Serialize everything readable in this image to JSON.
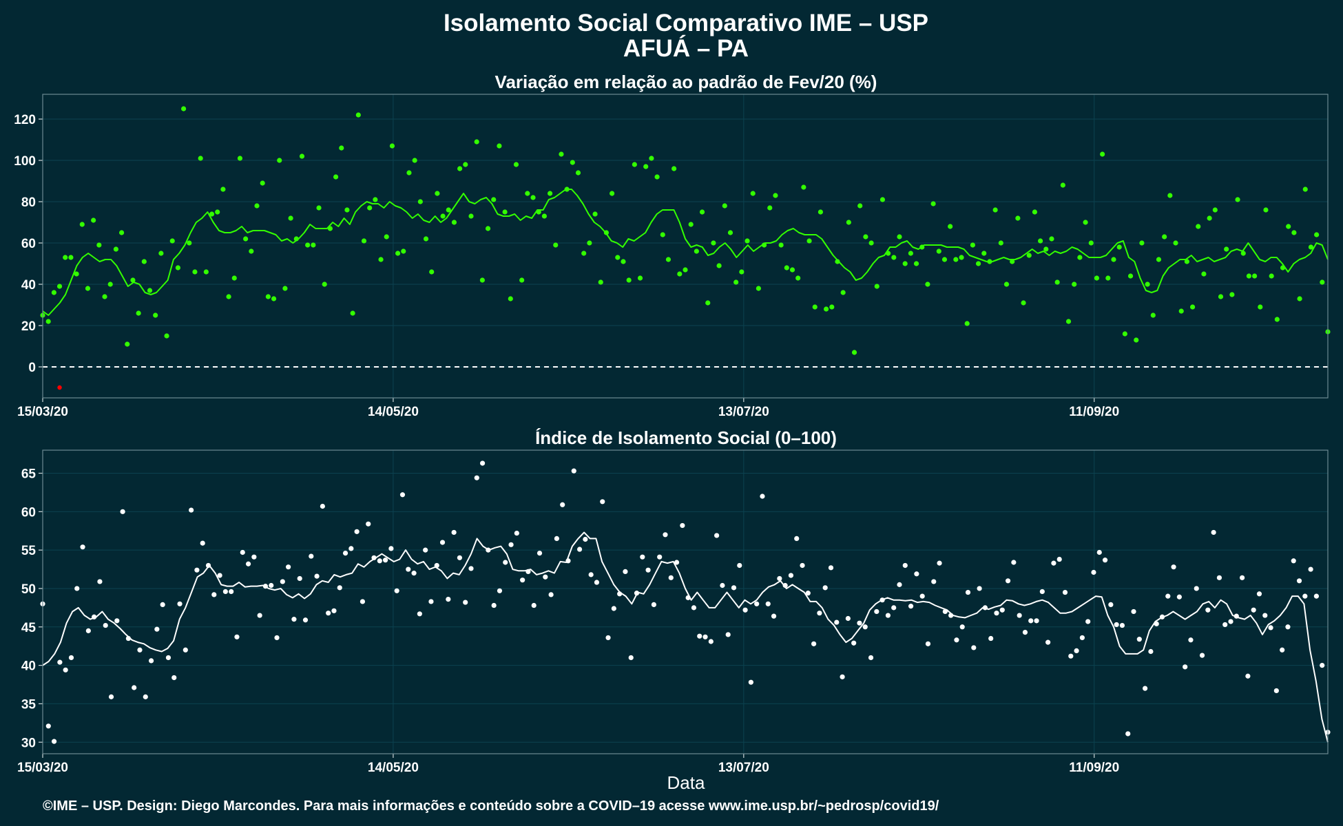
{
  "title": "Isolamento Social Comparativo IME – USP",
  "subtitle": "AFUÁ – PA",
  "xlabel": "Data",
  "footer": "©IME – USP. Design: Diego Marcondes. Para mais informações e conteúdo sobre a COVID–19 acesse www.ime.usp.br/~pedrosp/covid19/",
  "colors": {
    "background": "#032833",
    "panel1_series": "#33ff00",
    "panel1_negative": "#ff0000",
    "panel2_series": "#ffffff",
    "grid": "#0c4250"
  },
  "chart_data": [
    {
      "type": "scatter",
      "title": "Variação em relação ao padrão de Fev/20 (%)",
      "xlabel": "",
      "ylabel": "",
      "x_ticks": [
        "15/03/20",
        "14/05/20",
        "13/07/20",
        "11/09/20"
      ],
      "y_ticks": [
        0,
        20,
        40,
        60,
        80,
        100,
        120
      ],
      "ylim": [
        -15,
        132
      ],
      "grid": true,
      "reference_line": 0,
      "x_start": "15/03/20",
      "x_end": "21/10/20",
      "series": [
        {
          "values": [
            25,
            22,
            36,
            39,
            53,
            53,
            45,
            69,
            38,
            71,
            59,
            34,
            40,
            57,
            65,
            11,
            42,
            26,
            51,
            37,
            25,
            55,
            15,
            61,
            48,
            125,
            60,
            46,
            101,
            46,
            74,
            75,
            86,
            34,
            43,
            101,
            62,
            56,
            78,
            89,
            34,
            33,
            100,
            38,
            72,
            62,
            102,
            59,
            59,
            77,
            40,
            67,
            92,
            106,
            76,
            26,
            122,
            61,
            77,
            81,
            52,
            63,
            107,
            55,
            56,
            94,
            100,
            80,
            62,
            46,
            84,
            73,
            76,
            70,
            96,
            98,
            73,
            109,
            42,
            67,
            81,
            107,
            75,
            33,
            98,
            42,
            84,
            82,
            75,
            73,
            84,
            59,
            103,
            86,
            99,
            94,
            55,
            60,
            74,
            41,
            65,
            84,
            53,
            51,
            42,
            98,
            43,
            97,
            101,
            92,
            64,
            52,
            96,
            45,
            47,
            69,
            56,
            75,
            31,
            60,
            49,
            78,
            65,
            41,
            46,
            61,
            84,
            38,
            59,
            77,
            83,
            59,
            48,
            47,
            43,
            87,
            61,
            29,
            75,
            28,
            29,
            51,
            36,
            70,
            7,
            78,
            63,
            60,
            39,
            81,
            55,
            53,
            63,
            50,
            55,
            50,
            58,
            40,
            79,
            56,
            52,
            68,
            52,
            53,
            21,
            59,
            50,
            55,
            51,
            76,
            60,
            40,
            51,
            72,
            31,
            54,
            75,
            61,
            57,
            62,
            41,
            88,
            22,
            40,
            53,
            70,
            60,
            43,
            103,
            43,
            52,
            58,
            16,
            44,
            13,
            60,
            40,
            25,
            52,
            63,
            83,
            60,
            27,
            51,
            29,
            68,
            45,
            72,
            76,
            34,
            57,
            35,
            81,
            55,
            44,
            44,
            29,
            76,
            44,
            23,
            48,
            68,
            65,
            33,
            86,
            58,
            64,
            41,
            17
          ],
          "smoothed": [
            27,
            25,
            28,
            31,
            35,
            42,
            49,
            53,
            55,
            53,
            51,
            52,
            52,
            49,
            44,
            39,
            41,
            40,
            36,
            35,
            36,
            39,
            42,
            52,
            55,
            59,
            65,
            70,
            72,
            75,
            70,
            66,
            65,
            65,
            66,
            68,
            65,
            66,
            66,
            66,
            65,
            64,
            61,
            62,
            60,
            62,
            65,
            69,
            67,
            67,
            67,
            70,
            68,
            72,
            69,
            75,
            78,
            80,
            79,
            79,
            77,
            80,
            78,
            77,
            75,
            72,
            74,
            71,
            70,
            73,
            70,
            72,
            76,
            80,
            84,
            80,
            79,
            81,
            82,
            79,
            74,
            73,
            73,
            74,
            71,
            73,
            72,
            76,
            76,
            81,
            82,
            84,
            86,
            86,
            83,
            79,
            74,
            70,
            68,
            65,
            61,
            60,
            58,
            62,
            61,
            63,
            65,
            70,
            74,
            76,
            76,
            76,
            70,
            62,
            58,
            59,
            58,
            54,
            55,
            58,
            60,
            57,
            53,
            56,
            59,
            56,
            58,
            60,
            60,
            61,
            64,
            66,
            67,
            65,
            64,
            64,
            64,
            62,
            58,
            54,
            51,
            48,
            46,
            42,
            43,
            46,
            50,
            53,
            54,
            58,
            58,
            60,
            61,
            58,
            57,
            59,
            59,
            59,
            59,
            58,
            58,
            58,
            57,
            54,
            53,
            52,
            51,
            51,
            52,
            53,
            52,
            52,
            53,
            55,
            57,
            55,
            56,
            54,
            56,
            55,
            56,
            58,
            57,
            55,
            53,
            53,
            53,
            54,
            57,
            60,
            61,
            53,
            51,
            43,
            37,
            36,
            37,
            44,
            48,
            50,
            52,
            52,
            54,
            51,
            52,
            53,
            51,
            52,
            53,
            56,
            57,
            56,
            60,
            56,
            52,
            51,
            53,
            53,
            50,
            46,
            50,
            52,
            53,
            55,
            60,
            59,
            52
          ]
        }
      ],
      "negative_points": [
        -10
      ]
    },
    {
      "type": "scatter",
      "title": "Índice de Isolamento Social (0–100)",
      "xlabel": "Data",
      "ylabel": "",
      "x_ticks": [
        "15/03/20",
        "14/05/20",
        "13/07/20",
        "11/09/20"
      ],
      "y_ticks": [
        30,
        35,
        40,
        45,
        50,
        55,
        60,
        65
      ],
      "ylim": [
        28.5,
        68
      ],
      "grid": true,
      "x_start": "15/03/20",
      "x_end": "21/10/20",
      "series": [
        {
          "values": [
            48,
            32.1,
            30.1,
            40.4,
            39.4,
            41,
            50,
            55.4,
            44.5,
            46.3,
            50.9,
            45.2,
            35.9,
            45.8,
            60,
            43.5,
            37.1,
            42,
            35.9,
            40.6,
            44.7,
            47.9,
            41,
            38.4,
            48,
            42,
            60.2,
            52.4,
            55.9,
            53,
            49.2,
            51.7,
            49.6,
            49.6,
            43.7,
            54.7,
            53.2,
            54.1,
            46.5,
            50.3,
            50.4,
            43.6,
            50.9,
            52.8,
            46,
            51.3,
            45.9,
            54.2,
            51.6,
            60.7,
            46.8,
            47.1,
            50.1,
            54.6,
            55.2,
            57.4,
            48.3,
            58.4,
            54,
            53.6,
            53.7,
            55.2,
            49.7,
            62.2,
            52.5,
            52,
            46.7,
            55,
            48.3,
            53,
            56,
            48.6,
            57.3,
            54,
            48.2,
            52.6,
            64.4,
            66.3,
            55,
            47.8,
            49.7,
            53.4,
            55.7,
            57.2,
            51.1,
            52.2,
            47.8,
            54.6,
            51.5,
            49.2,
            56.5,
            60.9,
            53.6,
            65.3,
            55.1,
            56.4,
            51.8,
            50.8,
            61.3,
            43.6,
            47.4,
            49.3,
            52.2,
            41,
            49.4,
            54.1,
            52.4,
            47.9,
            54.1,
            57,
            51.4,
            53.4,
            58.2,
            48.8,
            47.5,
            43.8,
            43.7,
            43.1,
            56.9,
            50.4,
            44,
            50.1,
            53,
            47.2,
            37.8,
            48,
            62,
            48,
            46.4,
            51.3,
            50.4,
            51.7,
            56.5,
            53,
            49.4,
            42.8,
            46.8,
            50.1,
            52.7,
            45.6,
            38.5,
            46.1,
            42.9,
            45.5,
            45,
            41,
            47,
            48.5,
            46.5,
            47.5,
            50.5,
            53,
            47.7,
            51.9,
            49,
            42.8,
            50.9,
            53.3,
            47,
            46.5,
            43.3,
            45,
            49.5,
            42.3,
            50,
            47.5,
            43.5,
            46.8,
            47.2,
            51,
            53.4,
            46.5,
            44.3,
            45.8,
            45.8,
            49.6,
            43,
            53.3,
            53.8,
            49.5,
            41.2,
            41.9,
            43.6,
            45.7,
            52.1,
            54.7,
            53.7,
            47.9,
            45.3,
            45.2,
            31.1,
            47,
            43.4,
            37,
            41.8,
            45.4,
            46.3,
            49,
            52.8,
            48.9,
            39.8,
            43.3,
            50,
            41.3,
            47.2,
            57.3,
            51.4,
            45.3,
            45.7,
            46.4,
            51.4,
            38.6,
            47.2,
            49.3,
            46.5,
            44.9,
            36.7,
            42,
            45,
            53.6,
            51,
            49,
            52.5,
            49,
            40,
            31.3
          ],
          "smoothed": [
            40,
            40.5,
            41.5,
            43,
            45.5,
            47,
            47.5,
            46.5,
            46,
            46.3,
            47,
            46,
            45.5,
            44.8,
            44,
            43.3,
            43,
            42.8,
            42.3,
            42,
            41.8,
            42.2,
            43.2,
            46,
            47.5,
            49.5,
            51.5,
            52,
            53,
            52,
            50.5,
            50.3,
            50.3,
            50.8,
            50.2,
            50.3,
            50.3,
            50.4,
            50,
            49.8,
            50,
            49.2,
            48.8,
            49.3,
            48.7,
            49.3,
            50.5,
            51,
            50.8,
            51.8,
            51.5,
            51.8,
            52,
            53.2,
            52.8,
            53.5,
            54,
            54.5,
            54,
            53.5,
            53.8,
            55,
            53.8,
            53.2,
            53.5,
            52.5,
            52.8,
            52.3,
            51.3,
            52,
            51.8,
            53,
            54.5,
            56.5,
            55.5,
            55,
            55.3,
            55.5,
            54.5,
            52.5,
            52.3,
            52.3,
            52.5,
            51.8,
            52,
            52.3,
            52,
            53.5,
            53.4,
            55.5,
            56.5,
            57.3,
            56.5,
            56.5,
            53.5,
            52,
            50.5,
            49.5,
            49,
            48,
            49.5,
            49.3,
            50.5,
            52,
            53.5,
            53.3,
            53.5,
            52,
            50,
            48.5,
            49.5,
            48.5,
            47.5,
            47.5,
            48.5,
            49.5,
            48.5,
            47.5,
            48.5,
            48,
            48.5,
            49.5,
            50.2,
            50.5,
            51,
            50,
            50.5,
            50,
            49.5,
            48.3,
            48.3,
            47.5,
            46,
            45.2,
            44,
            43,
            43.5,
            44.5,
            45.5,
            47.2,
            48,
            48.5,
            48.8,
            48.5,
            48.5,
            48.4,
            48.5,
            48.2,
            48.3,
            48.2,
            47.8,
            47.5,
            47.2,
            46.5,
            46.3,
            46.2,
            46.5,
            46.8,
            47.5,
            47.3,
            47.6,
            47.8,
            48.5,
            48.4,
            48,
            47.8,
            48,
            48.3,
            48.5,
            48.2,
            47.5,
            46.8,
            46.8,
            47,
            47.5,
            48,
            48.5,
            49,
            48.9,
            46.5,
            45,
            42.5,
            41.5,
            41.5,
            41.5,
            42,
            44.5,
            45.7,
            46.2,
            46.5,
            47,
            46.5,
            46,
            46.5,
            47,
            48,
            48.3,
            47.5,
            48.5,
            48,
            46.5,
            46.2,
            46,
            46.5,
            45.5,
            44,
            45.3,
            45.8,
            46.5,
            47.5,
            49,
            49,
            48,
            42,
            38,
            33,
            30
          ]
        }
      ]
    }
  ]
}
